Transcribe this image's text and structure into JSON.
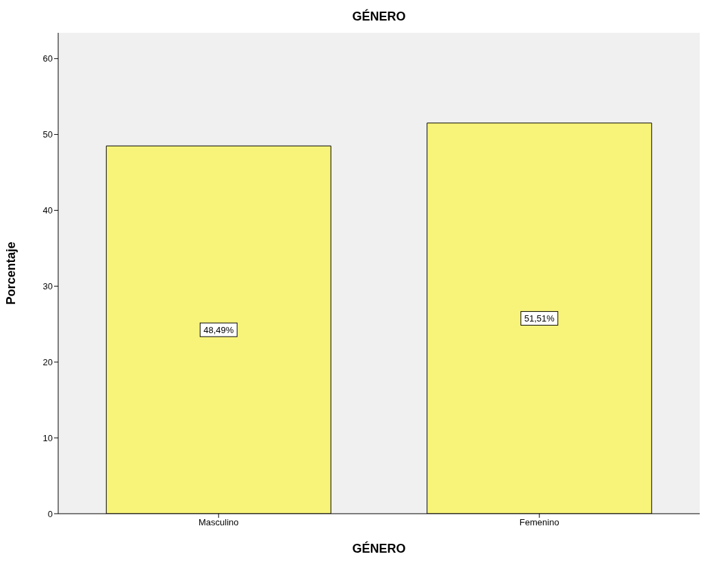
{
  "chart_data": {
    "type": "bar",
    "title": "GÉNERO",
    "xlabel": "GÉNERO",
    "ylabel": "Porcentaje",
    "categories": [
      "Masculino",
      "Femenino"
    ],
    "values": [
      48.49,
      51.51
    ],
    "color": "#f8f47a",
    "value_labels": [
      "48,49%",
      "51,51%"
    ],
    "ylim": [
      0,
      63.4
    ],
    "yticks": [
      0,
      10,
      20,
      30,
      40,
      50,
      60
    ],
    "grid": false
  }
}
